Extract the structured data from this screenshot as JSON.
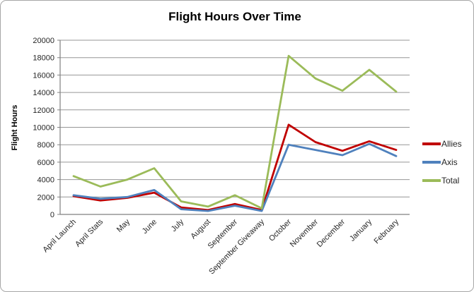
{
  "chart_data": {
    "type": "line",
    "title": "Flight Hours Over Time",
    "xlabel": "",
    "ylabel": "Flight Hours",
    "ylim": [
      0,
      20000
    ],
    "yticks": [
      0,
      2000,
      4000,
      6000,
      8000,
      10000,
      12000,
      14000,
      16000,
      18000,
      20000
    ],
    "grid": true,
    "legend_position": "right",
    "categories": [
      "April Launch",
      "April Stats",
      "May",
      "June",
      "July",
      "August",
      "September",
      "September Giveaway",
      "October",
      "November",
      "December",
      "January",
      "February"
    ],
    "series": [
      {
        "name": "Allies",
        "color": "#C00000",
        "values": [
          2100,
          1600,
          1900,
          2500,
          800,
          500,
          1200,
          500,
          10300,
          8300,
          7300,
          8400,
          7400
        ]
      },
      {
        "name": "Axis",
        "color": "#4F81BD",
        "values": [
          2200,
          1800,
          2000,
          2800,
          600,
          400,
          1000,
          400,
          8000,
          7400,
          6800,
          8100,
          6700
        ]
      },
      {
        "name": "Total",
        "color": "#9BBB59",
        "values": [
          4400,
          3200,
          4000,
          5300,
          1500,
          900,
          2200,
          700,
          18200,
          15600,
          14200,
          16600,
          14100
        ]
      }
    ],
    "colors": {
      "gridline": "#969696",
      "axis_line": "#808080",
      "tick_text": "#262626",
      "title_text": "#000000"
    }
  }
}
